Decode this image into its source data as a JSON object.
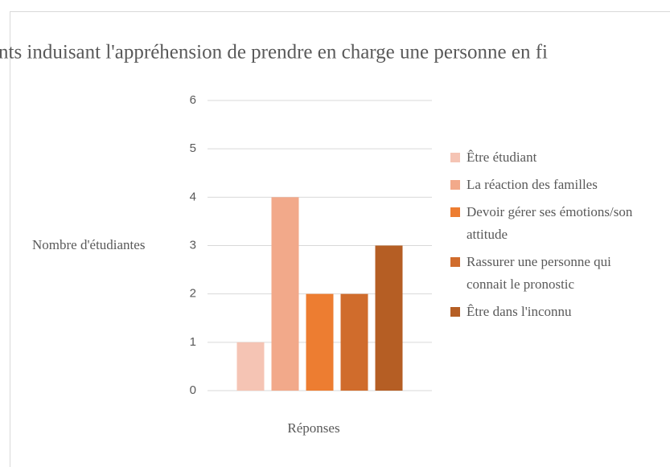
{
  "chart_data": {
    "type": "bar",
    "title": "nts induisant l'appréhension de prendre en charge une personne en fi",
    "ylabel": "Nombre d'étudiantes",
    "xlabel": "Réponses",
    "categories": [
      null
    ],
    "series": [
      {
        "name": "Être étudiant",
        "color": "#f5c4b4",
        "values": [
          1
        ]
      },
      {
        "name": "La réaction des familles",
        "color": "#f2a98a",
        "values": [
          4
        ]
      },
      {
        "name": "Devoir gérer ses émotions/son attitude",
        "color": "#ed7d31",
        "values": [
          2
        ]
      },
      {
        "name": "Rassurer une personne qui connait le pronostic",
        "color": "#d06c2c",
        "values": [
          2
        ]
      },
      {
        "name": "Être dans l'inconnu",
        "color": "#b55e24",
        "values": [
          3
        ]
      }
    ],
    "ylim": [
      0,
      6
    ],
    "yticks": [
      0,
      1,
      2,
      3,
      4,
      5,
      6
    ],
    "grid": true,
    "legend": "right"
  }
}
